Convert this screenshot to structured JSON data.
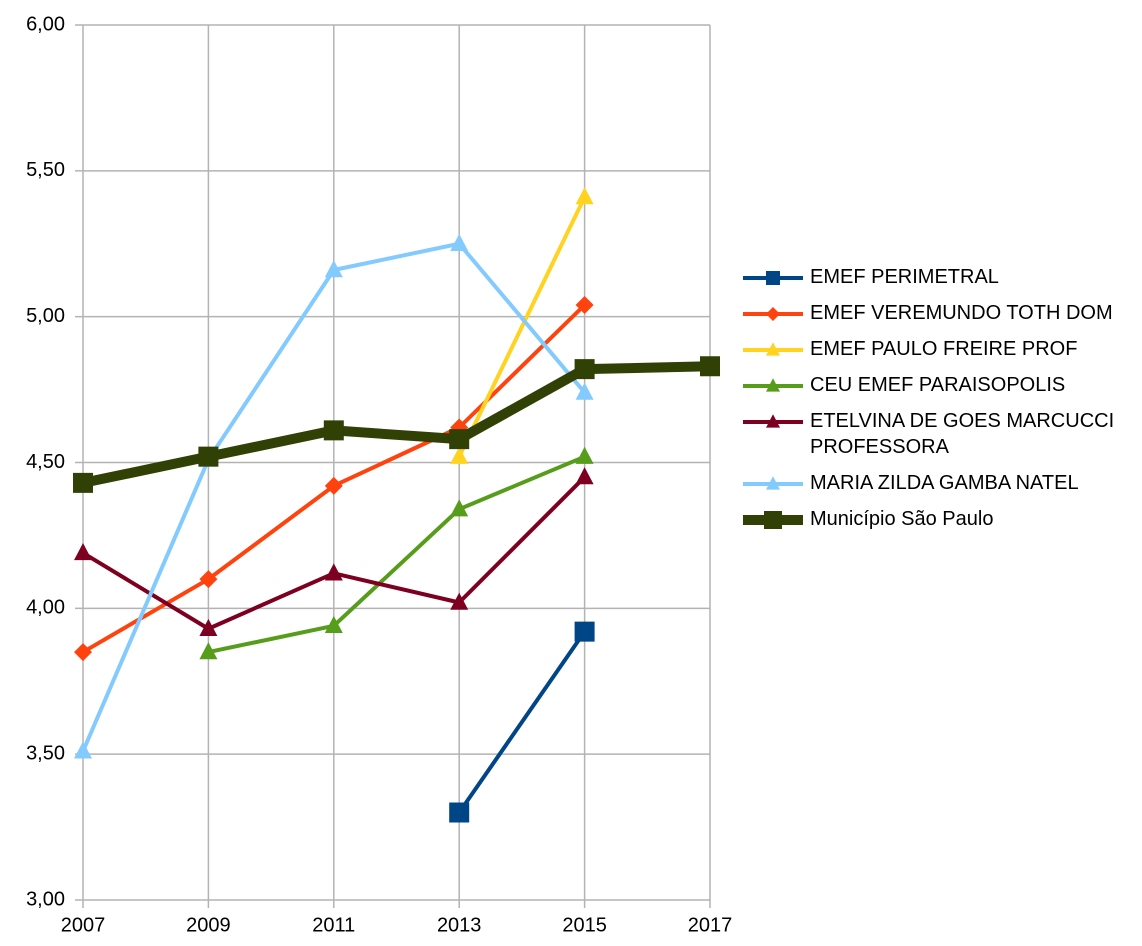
{
  "chart_data": {
    "type": "line",
    "x": [
      2007,
      2009,
      2011,
      2013,
      2015,
      2017
    ],
    "xlim": [
      2007,
      2017
    ],
    "xticks": [
      2007,
      2009,
      2011,
      2013,
      2015,
      2017
    ],
    "ylim": [
      3,
      6
    ],
    "yticks": [
      {
        "value": 3,
        "label": "3,00"
      },
      {
        "value": 3.5,
        "label": "3,50"
      },
      {
        "value": 4,
        "label": "4,00"
      },
      {
        "value": 4.5,
        "label": "4,50"
      },
      {
        "value": 5,
        "label": "5,00"
      },
      {
        "value": 5.5,
        "label": "5,50"
      },
      {
        "value": 6,
        "label": "6,00"
      }
    ],
    "grid": true,
    "legend": "right",
    "series": [
      {
        "name": "EMEF PERIMETRAL",
        "color": "#004586",
        "marker": "square",
        "values": [
          null,
          null,
          null,
          3.3,
          3.92,
          null
        ]
      },
      {
        "name": "EMEF VEREMUNDO TOTH DOM",
        "color": "#ff420e",
        "marker": "diamond",
        "values": [
          3.85,
          4.1,
          4.42,
          4.62,
          5.04,
          null
        ]
      },
      {
        "name": "EMEF PAULO FREIRE PROF",
        "color": "#ffd320",
        "marker": "triangle",
        "values": [
          null,
          null,
          null,
          4.52,
          5.41,
          null
        ]
      },
      {
        "name": "CEU EMEF PARAISOPOLIS",
        "color": "#579d1c",
        "marker": "triangle",
        "values": [
          null,
          3.85,
          3.94,
          4.34,
          4.52,
          null
        ]
      },
      {
        "name": "ETELVINA DE GOES MARCUCCI PROFESSORA",
        "color": "#7e0021",
        "marker": "triangle",
        "values": [
          4.19,
          3.93,
          4.12,
          4.02,
          4.45,
          null
        ]
      },
      {
        "name": "MARIA ZILDA GAMBA NATEL",
        "color": "#83caff",
        "marker": "triangle",
        "values": [
          3.51,
          4.51,
          5.16,
          5.25,
          4.74,
          null
        ]
      },
      {
        "name": "Município São Paulo",
        "color": "#314004",
        "marker": "square",
        "line_width": 10,
        "values": [
          4.43,
          4.52,
          4.61,
          4.58,
          4.82,
          4.83
        ]
      }
    ]
  }
}
